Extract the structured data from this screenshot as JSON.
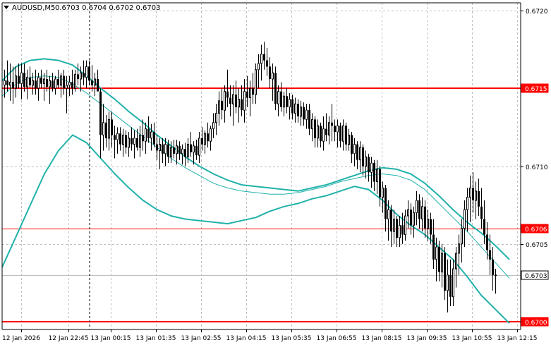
{
  "header": {
    "symbol_label": "AUDUSD,M5",
    "ohlc_label": "0.6703 0.6704 0.6702 0.6703"
  },
  "colors": {
    "background": "#ffffff",
    "candle": "#000000",
    "grid": "#c0c0c0",
    "band": "#20b2aa",
    "level_line": "#ff0000",
    "level_label_bg": "#ff0000",
    "level_label_text": "#ffffff",
    "current_price_line": "#c0c0c0",
    "current_price_label_bg": "#ffffff",
    "current_price_label_text": "#000000"
  },
  "chart_data": {
    "type": "candlestick",
    "symbol": "AUDUSD",
    "timeframe": "M5",
    "x_tick_labels": [
      "12 Jan 2026",
      "12 Jan 22:45",
      "13 Jan 00:15",
      "13 Jan 01:35",
      "13 Jan 02:55",
      "13 Jan 04:15",
      "13 Jan 05:35",
      "13 Jan 06:55",
      "13 Jan 08:15",
      "13 Jan 09:35",
      "13 Jan 10:55",
      "13 Jan 12:15"
    ],
    "y_ticks": [
      0.672,
      0.6715,
      0.671,
      0.6705,
      0.67
    ],
    "y_tick_labels": [
      "0.6720",
      "0.6715",
      "0.6710",
      "0.6705",
      "0.6700"
    ],
    "ylim": [
      0.66995,
      0.67205
    ],
    "grid": true,
    "level_lines": [
      {
        "value": 0.6715,
        "label": "0.6715",
        "width": 2
      },
      {
        "value": 0.6706,
        "label": "0.6706",
        "width": 1
      },
      {
        "value": 0.67,
        "label": "0.6700",
        "width": 2
      }
    ],
    "current_price": {
      "value": 0.6703,
      "label": "0.6703"
    },
    "crosshair_x_label": "13 Jan 00:15",
    "bollinger": {
      "upper": [
        0.67155,
        0.67164,
        0.67168,
        0.67169,
        0.67168,
        0.67165,
        0.67158,
        0.6715,
        0.67143,
        0.67135,
        0.67128,
        0.6712,
        0.67113,
        0.67106,
        0.671,
        0.67095,
        0.67091,
        0.67088,
        0.67087,
        0.67086,
        0.67085,
        0.67084,
        0.67086,
        0.67088,
        0.67091,
        0.67094,
        0.67097,
        0.67099,
        0.67098,
        0.67095,
        0.67089,
        0.67081,
        0.67072,
        0.67064,
        0.67057,
        0.67049,
        0.6704
      ],
      "middle": [
        0.67145,
        0.67153,
        0.67157,
        0.67158,
        0.67157,
        0.67153,
        0.67147,
        0.6714,
        0.67133,
        0.67126,
        0.67119,
        0.67112,
        0.67105,
        0.67099,
        0.67094,
        0.67089,
        0.67086,
        0.67084,
        0.67083,
        0.67082,
        0.67082,
        0.67083,
        0.67085,
        0.67087,
        0.6709,
        0.67092,
        0.67094,
        0.67095,
        0.67094,
        0.67091,
        0.67085,
        0.67076,
        0.67067,
        0.67058,
        0.67048,
        0.67038,
        0.67028
      ],
      "lower": [
        0.67035,
        0.67055,
        0.67075,
        0.67095,
        0.6711,
        0.6712,
        0.67115,
        0.67105,
        0.67095,
        0.67086,
        0.67078,
        0.67072,
        0.67068,
        0.67066,
        0.67065,
        0.67064,
        0.67063,
        0.67065,
        0.67067,
        0.67071,
        0.67074,
        0.67076,
        0.67079,
        0.67081,
        0.67084,
        0.67087,
        0.67085,
        0.67078,
        0.67069,
        0.67062,
        0.67056,
        0.67048,
        0.6704,
        0.67029,
        0.67017,
        0.67008,
        0.66999
      ]
    },
    "candles": [
      [
        0.67152,
        0.67162,
        0.67144,
        0.67155
      ],
      [
        0.67155,
        0.67168,
        0.67148,
        0.67152
      ],
      [
        0.67152,
        0.67166,
        0.67142,
        0.67154
      ],
      [
        0.67154,
        0.67164,
        0.6714,
        0.6715
      ],
      [
        0.6715,
        0.67164,
        0.67144,
        0.67158
      ],
      [
        0.67158,
        0.67166,
        0.6715,
        0.67153
      ],
      [
        0.67153,
        0.67166,
        0.67143,
        0.6716
      ],
      [
        0.6716,
        0.67166,
        0.67148,
        0.67151
      ],
      [
        0.67151,
        0.67162,
        0.67143,
        0.67157
      ],
      [
        0.67157,
        0.67164,
        0.6715,
        0.67152
      ],
      [
        0.67152,
        0.6716,
        0.67146,
        0.67155
      ],
      [
        0.67155,
        0.67162,
        0.67146,
        0.6715
      ],
      [
        0.6715,
        0.6716,
        0.67142,
        0.67157
      ],
      [
        0.67157,
        0.67162,
        0.6715,
        0.67153
      ],
      [
        0.67153,
        0.6716,
        0.67142,
        0.67156
      ],
      [
        0.67156,
        0.67162,
        0.67148,
        0.67151
      ],
      [
        0.67151,
        0.67158,
        0.6714,
        0.67155
      ],
      [
        0.67155,
        0.6716,
        0.67148,
        0.6715
      ],
      [
        0.6715,
        0.67158,
        0.67146,
        0.67156
      ],
      [
        0.67156,
        0.67162,
        0.6715,
        0.67152
      ],
      [
        0.67152,
        0.6716,
        0.67144,
        0.67158
      ],
      [
        0.67158,
        0.67162,
        0.67146,
        0.6715
      ],
      [
        0.6715,
        0.67158,
        0.67134,
        0.67152
      ],
      [
        0.67152,
        0.67158,
        0.67145,
        0.67154
      ],
      [
        0.67154,
        0.67162,
        0.67146,
        0.6715
      ],
      [
        0.6715,
        0.67162,
        0.67148,
        0.67159
      ],
      [
        0.67159,
        0.67166,
        0.67152,
        0.67156
      ],
      [
        0.67156,
        0.67164,
        0.67148,
        0.6716
      ],
      [
        0.6716,
        0.67168,
        0.67152,
        0.67157
      ],
      [
        0.67157,
        0.67168,
        0.6715,
        0.67164
      ],
      [
        0.67164,
        0.67168,
        0.67152,
        0.67155
      ],
      [
        0.67155,
        0.67165,
        0.67148,
        0.67152
      ],
      [
        0.67152,
        0.6716,
        0.67145,
        0.67156
      ],
      [
        0.67156,
        0.67162,
        0.6715,
        0.67148
      ],
      [
        0.67148,
        0.6715,
        0.67105,
        0.6712
      ],
      [
        0.6712,
        0.6714,
        0.6711,
        0.67128
      ],
      [
        0.67128,
        0.67133,
        0.67112,
        0.67118
      ],
      [
        0.67118,
        0.67135,
        0.6711,
        0.6713
      ],
      [
        0.6713,
        0.67135,
        0.67112,
        0.6712
      ],
      [
        0.6712,
        0.67126,
        0.67105,
        0.67117
      ],
      [
        0.67117,
        0.67125,
        0.67108,
        0.67121
      ],
      [
        0.67121,
        0.67125,
        0.6711,
        0.67114
      ],
      [
        0.67114,
        0.67124,
        0.67106,
        0.6712
      ],
      [
        0.6712,
        0.67123,
        0.67108,
        0.67112
      ],
      [
        0.67112,
        0.67122,
        0.67106,
        0.67118
      ],
      [
        0.67118,
        0.67125,
        0.6711,
        0.67114
      ],
      [
        0.67114,
        0.67123,
        0.67105,
        0.67118
      ],
      [
        0.67118,
        0.67124,
        0.6711,
        0.67112
      ],
      [
        0.67112,
        0.67126,
        0.67106,
        0.6712
      ],
      [
        0.6712,
        0.6713,
        0.6711,
        0.67116
      ],
      [
        0.67116,
        0.67128,
        0.67108,
        0.67124
      ],
      [
        0.67124,
        0.67132,
        0.67115,
        0.67118
      ],
      [
        0.67118,
        0.67127,
        0.6711,
        0.67122
      ],
      [
        0.67122,
        0.67128,
        0.67112,
        0.67114
      ],
      [
        0.67114,
        0.6712,
        0.67104,
        0.6711
      ],
      [
        0.6711,
        0.67118,
        0.67098,
        0.67114
      ],
      [
        0.67114,
        0.67118,
        0.67102,
        0.67108
      ],
      [
        0.67108,
        0.67118,
        0.671,
        0.67114
      ],
      [
        0.67114,
        0.67117,
        0.67102,
        0.67106
      ],
      [
        0.67106,
        0.67116,
        0.67102,
        0.67112
      ],
      [
        0.67112,
        0.67117,
        0.67105,
        0.67108
      ],
      [
        0.67108,
        0.67117,
        0.67101,
        0.67113
      ],
      [
        0.67113,
        0.67116,
        0.67104,
        0.67108
      ],
      [
        0.67108,
        0.67114,
        0.67101,
        0.67111
      ],
      [
        0.67111,
        0.67115,
        0.671,
        0.67106
      ],
      [
        0.67106,
        0.67118,
        0.67102,
        0.67114
      ],
      [
        0.67114,
        0.67122,
        0.67106,
        0.67109
      ],
      [
        0.67109,
        0.67116,
        0.67101,
        0.67113
      ],
      [
        0.67113,
        0.67117,
        0.67104,
        0.67107
      ],
      [
        0.67107,
        0.67122,
        0.67102,
        0.67118
      ],
      [
        0.67118,
        0.67125,
        0.6711,
        0.67114
      ],
      [
        0.67114,
        0.67123,
        0.67108,
        0.67121
      ],
      [
        0.67121,
        0.67128,
        0.67112,
        0.67116
      ],
      [
        0.67116,
        0.67126,
        0.6711,
        0.67124
      ],
      [
        0.67124,
        0.67134,
        0.67118,
        0.67128
      ],
      [
        0.67128,
        0.6714,
        0.6712,
        0.67134
      ],
      [
        0.67134,
        0.67148,
        0.67126,
        0.67142
      ],
      [
        0.67142,
        0.6715,
        0.6713,
        0.67136
      ],
      [
        0.67136,
        0.67152,
        0.67128,
        0.67148
      ],
      [
        0.67148,
        0.67162,
        0.67138,
        0.67144
      ],
      [
        0.67144,
        0.67152,
        0.67132,
        0.6714
      ],
      [
        0.6714,
        0.67152,
        0.67126,
        0.67146
      ],
      [
        0.67146,
        0.67155,
        0.67134,
        0.67138
      ],
      [
        0.67138,
        0.6715,
        0.67128,
        0.67143
      ],
      [
        0.67143,
        0.67152,
        0.67132,
        0.67136
      ],
      [
        0.67136,
        0.67156,
        0.67128,
        0.67148
      ],
      [
        0.67148,
        0.67158,
        0.67138,
        0.67144
      ],
      [
        0.67144,
        0.67155,
        0.67132,
        0.6715
      ],
      [
        0.6715,
        0.6716,
        0.6714,
        0.67146
      ],
      [
        0.67146,
        0.67166,
        0.6714,
        0.67162
      ],
      [
        0.67162,
        0.67172,
        0.6715,
        0.67166
      ],
      [
        0.67166,
        0.67178,
        0.67155,
        0.67172
      ],
      [
        0.67172,
        0.6718,
        0.67162,
        0.67168
      ],
      [
        0.67168,
        0.67176,
        0.67158,
        0.67164
      ],
      [
        0.67164,
        0.6717,
        0.6715,
        0.67156
      ],
      [
        0.67156,
        0.67166,
        0.67142,
        0.6716
      ],
      [
        0.6716,
        0.67164,
        0.67136,
        0.6714
      ],
      [
        0.6714,
        0.67152,
        0.67132,
        0.67148
      ],
      [
        0.67148,
        0.67154,
        0.67135,
        0.67138
      ],
      [
        0.67138,
        0.67148,
        0.67132,
        0.67145
      ],
      [
        0.67145,
        0.6715,
        0.67134,
        0.67138
      ],
      [
        0.67138,
        0.67147,
        0.6713,
        0.67143
      ],
      [
        0.67143,
        0.67146,
        0.6713,
        0.67134
      ],
      [
        0.67134,
        0.67144,
        0.67128,
        0.6714
      ],
      [
        0.6714,
        0.67143,
        0.67128,
        0.67132
      ],
      [
        0.67132,
        0.67142,
        0.67126,
        0.67138
      ],
      [
        0.67138,
        0.67141,
        0.67126,
        0.6713
      ],
      [
        0.6713,
        0.6714,
        0.67124,
        0.67136
      ],
      [
        0.67136,
        0.6714,
        0.6712,
        0.67124
      ],
      [
        0.67124,
        0.67134,
        0.67116,
        0.6713
      ],
      [
        0.6713,
        0.67132,
        0.67112,
        0.67118
      ],
      [
        0.67118,
        0.6713,
        0.67112,
        0.67126
      ],
      [
        0.67126,
        0.67128,
        0.67112,
        0.67116
      ],
      [
        0.67116,
        0.67132,
        0.6711,
        0.67124
      ],
      [
        0.67124,
        0.67134,
        0.67116,
        0.6712
      ],
      [
        0.6712,
        0.67132,
        0.67114,
        0.67128
      ],
      [
        0.67128,
        0.6714,
        0.67116,
        0.67126
      ],
      [
        0.67126,
        0.6713,
        0.67116,
        0.67122
      ],
      [
        0.67122,
        0.6713,
        0.67112,
        0.67126
      ],
      [
        0.67126,
        0.67128,
        0.67112,
        0.67116
      ],
      [
        0.67116,
        0.6713,
        0.6711,
        0.67126
      ],
      [
        0.67126,
        0.67128,
        0.6711,
        0.67114
      ],
      [
        0.67114,
        0.67124,
        0.6711,
        0.6712
      ],
      [
        0.6712,
        0.67122,
        0.67102,
        0.67108
      ],
      [
        0.67108,
        0.67118,
        0.671,
        0.67114
      ],
      [
        0.67114,
        0.67116,
        0.67098,
        0.67104
      ],
      [
        0.67104,
        0.67116,
        0.67096,
        0.67112
      ],
      [
        0.67112,
        0.67114,
        0.67094,
        0.671
      ],
      [
        0.671,
        0.6711,
        0.67092,
        0.67106
      ],
      [
        0.67106,
        0.67108,
        0.6709,
        0.67096
      ],
      [
        0.67096,
        0.67106,
        0.67086,
        0.67102
      ],
      [
        0.67102,
        0.67104,
        0.67084,
        0.6709
      ],
      [
        0.6709,
        0.67104,
        0.67082,
        0.67098
      ],
      [
        0.67098,
        0.671,
        0.67074,
        0.6708
      ],
      [
        0.6708,
        0.6709,
        0.6707,
        0.67086
      ],
      [
        0.67086,
        0.67088,
        0.67058,
        0.67066
      ],
      [
        0.67066,
        0.67078,
        0.67052,
        0.67072
      ],
      [
        0.67072,
        0.67075,
        0.67048,
        0.67058
      ],
      [
        0.67058,
        0.67072,
        0.6705,
        0.67066
      ],
      [
        0.67066,
        0.67068,
        0.67048,
        0.67054
      ],
      [
        0.67054,
        0.67068,
        0.67048,
        0.67062
      ],
      [
        0.67062,
        0.6707,
        0.6705,
        0.67056
      ],
      [
        0.67056,
        0.67072,
        0.67052,
        0.67068
      ],
      [
        0.67068,
        0.67078,
        0.6706,
        0.67072
      ],
      [
        0.67072,
        0.67076,
        0.67056,
        0.67062
      ],
      [
        0.67062,
        0.67074,
        0.67054,
        0.6707
      ],
      [
        0.6707,
        0.67084,
        0.67062,
        0.67078
      ],
      [
        0.67078,
        0.67082,
        0.6706,
        0.67066
      ],
      [
        0.67066,
        0.6708,
        0.67058,
        0.67074
      ],
      [
        0.67074,
        0.67078,
        0.67054,
        0.6706
      ],
      [
        0.6706,
        0.67072,
        0.67052,
        0.67066
      ],
      [
        0.67066,
        0.6707,
        0.6705,
        0.67056
      ],
      [
        0.67056,
        0.67066,
        0.67034,
        0.6704
      ],
      [
        0.6704,
        0.67054,
        0.67026,
        0.67048
      ],
      [
        0.67048,
        0.67052,
        0.67026,
        0.67032
      ],
      [
        0.67032,
        0.6705,
        0.67022,
        0.67044
      ],
      [
        0.67044,
        0.67048,
        0.67014,
        0.6702
      ],
      [
        0.6702,
        0.6704,
        0.67006,
        0.6703
      ],
      [
        0.6703,
        0.6704,
        0.6701,
        0.67016
      ],
      [
        0.67016,
        0.6704,
        0.6701,
        0.67034
      ],
      [
        0.67034,
        0.67048,
        0.67022,
        0.67044
      ],
      [
        0.67044,
        0.67056,
        0.6703,
        0.6705
      ],
      [
        0.6705,
        0.67066,
        0.67038,
        0.6706
      ],
      [
        0.6706,
        0.67078,
        0.67048,
        0.67072
      ],
      [
        0.67072,
        0.67086,
        0.67058,
        0.6708
      ],
      [
        0.6708,
        0.67094,
        0.67064,
        0.67086
      ],
      [
        0.67086,
        0.67096,
        0.6707,
        0.67078
      ],
      [
        0.67078,
        0.6709,
        0.67066,
        0.67084
      ],
      [
        0.67084,
        0.67092,
        0.67068,
        0.67074
      ],
      [
        0.67074,
        0.67086,
        0.6706,
        0.67066
      ],
      [
        0.67066,
        0.67078,
        0.6705,
        0.67056
      ],
      [
        0.67056,
        0.67064,
        0.6704,
        0.67046
      ],
      [
        0.67046,
        0.67056,
        0.6703,
        0.6704
      ],
      [
        0.6704,
        0.67048,
        0.6702,
        0.6703
      ],
      [
        0.6703,
        0.67034,
        0.67018,
        0.6703
      ]
    ]
  }
}
